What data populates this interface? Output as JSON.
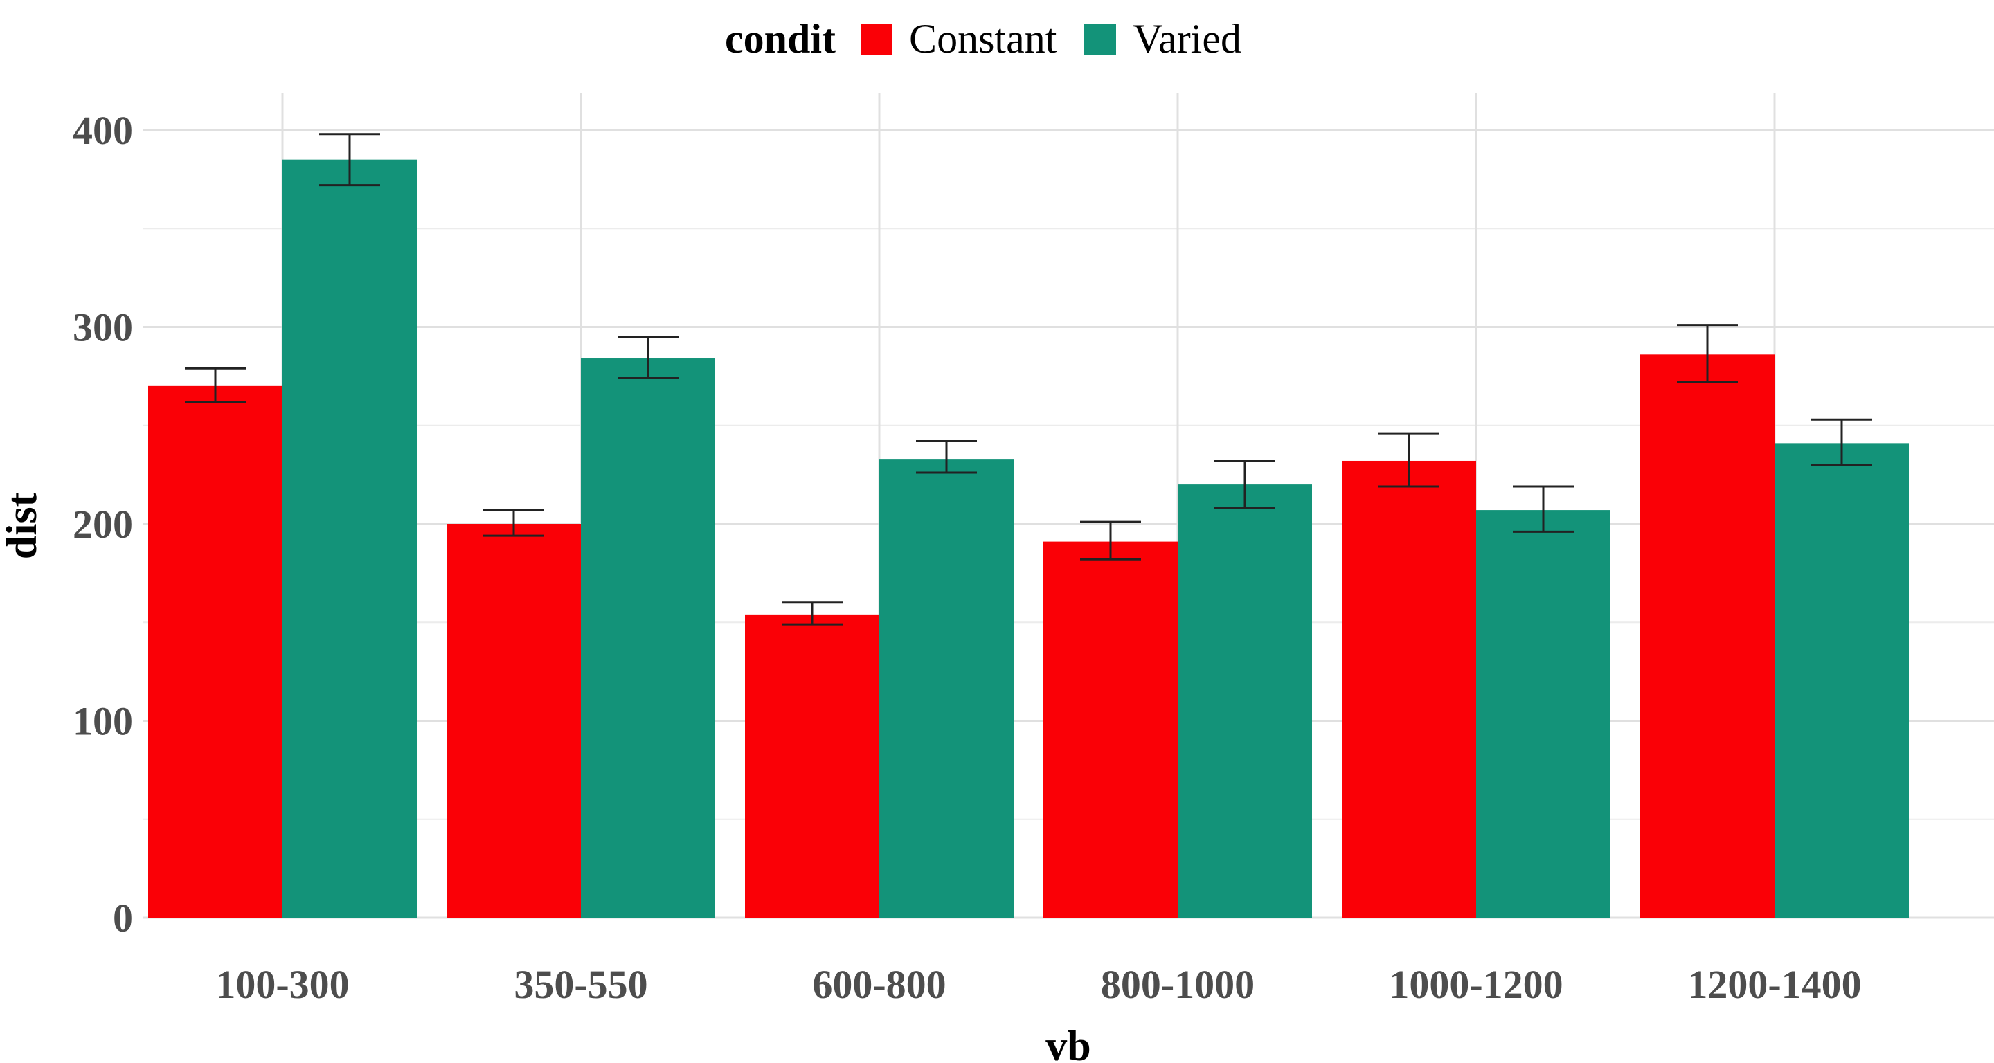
{
  "chart_data": {
    "type": "bar",
    "xlabel": "vb",
    "ylabel": "dist",
    "legend_title": "condit",
    "legend_position": "top",
    "grid": true,
    "ylim": [
      0,
      410
    ],
    "yticks": [
      0,
      100,
      200,
      300,
      400
    ],
    "ytick_labels": [
      "0",
      "100",
      "200",
      "300",
      "400"
    ],
    "categories": [
      "100-300",
      "350-550",
      "600-800",
      "800-1000",
      "1000-1200",
      "1200-1400"
    ],
    "series": [
      {
        "name": "Constant",
        "color": "#fa0006",
        "values": [
          270,
          200,
          154,
          191,
          232,
          286
        ],
        "error_low": [
          262,
          194,
          149,
          182,
          219,
          272
        ],
        "error_high": [
          279,
          207,
          160,
          201,
          246,
          301
        ]
      },
      {
        "name": "Varied",
        "color": "#139379",
        "values": [
          385,
          284,
          233,
          220,
          207,
          241
        ],
        "error_low": [
          372,
          274,
          226,
          208,
          196,
          230
        ],
        "error_high": [
          398,
          295,
          242,
          232,
          219,
          253
        ]
      }
    ]
  }
}
